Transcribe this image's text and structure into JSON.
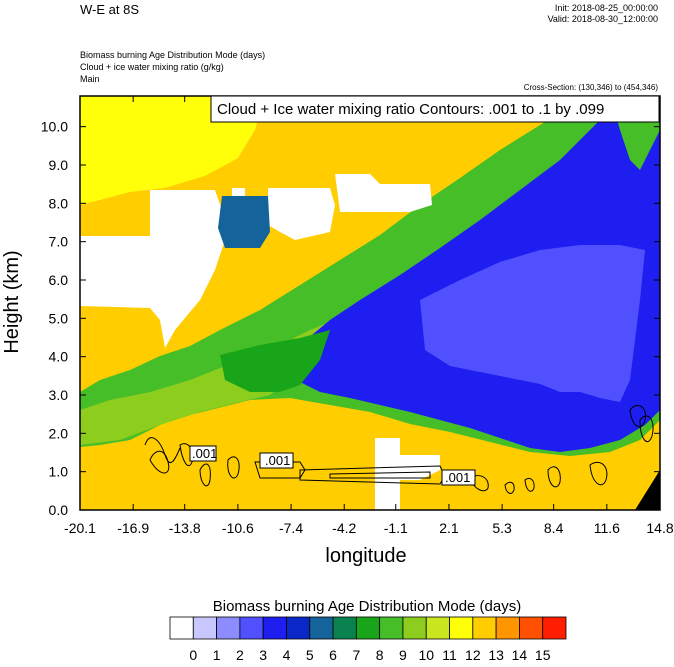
{
  "header": {
    "title": "W-E at 8S",
    "init": "Init: 2018-08-25_00:00:00",
    "valid": "Valid: 2018-08-30_12:00:00",
    "field_lines": [
      "Biomass burning Age Distribution Mode    (days)",
      "Cloud + ice water mixing ratio    (g/kg)",
      "Main"
    ],
    "cross_section": "Cross-Section: (130,346) to (454,346)"
  },
  "chart_data": {
    "type": "heatmap",
    "xlabel": "longitude",
    "ylabel": "Height (km)",
    "x_ticks": [
      "-20.1",
      "-16.9",
      "-13.8",
      "-10.6",
      "-7.4",
      "-4.2",
      "-1.1",
      "2.1",
      "5.3",
      "8.4",
      "11.6",
      "14.8"
    ],
    "y_ticks": [
      "0.0",
      "1.0",
      "2.0",
      "3.0",
      "4.0",
      "5.0",
      "6.0",
      "7.0",
      "8.0",
      "9.0",
      "10.0"
    ],
    "xlim": [
      -20.1,
      14.8
    ],
    "ylim": [
      0,
      10.8
    ],
    "contour_title": "Cloud + Ice water mixing ratio Contours: .001 to .1 by .099",
    "contour_labels": [
      ".001",
      ".001",
      ".001"
    ],
    "colorbar": {
      "title": "Biomass burning Age Distribution Mode  (days)",
      "labels": [
        "0",
        "1",
        "2",
        "3",
        "4",
        "5",
        "6",
        "7",
        "8",
        "9",
        "10",
        "11",
        "12",
        "13",
        "14",
        "15"
      ],
      "colors": [
        "#ffffff",
        "#c8c8ff",
        "#8c8cff",
        "#5050ff",
        "#1e1ef0",
        "#0a28c8",
        "#14649b",
        "#0a8250",
        "#19a519",
        "#46be28",
        "#8ccd1e",
        "#c8e61e",
        "#ffff0a",
        "#ffcd00",
        "#ff9600",
        "#ff5000",
        "#ff1e00"
      ]
    },
    "features": [
      {
        "name": "background age",
        "value": 13
      },
      {
        "name": "upper-left age",
        "value": 12
      },
      {
        "name": "aged plume core",
        "value": 4
      },
      {
        "name": "plume outer layer",
        "value": 9
      },
      {
        "name": "older interior",
        "value": 3
      }
    ],
    "grid": false,
    "legend": "bottom"
  }
}
